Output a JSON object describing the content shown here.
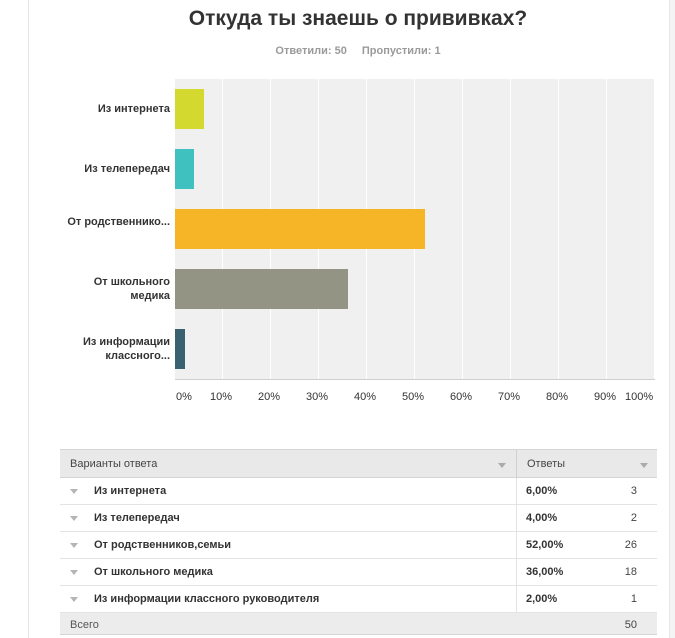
{
  "title": "Откуда ты знаешь о прививках?",
  "stats": {
    "answered": "Ответили: 50",
    "skipped": "Пропустили: 1"
  },
  "chart_data": {
    "type": "bar",
    "orientation": "horizontal",
    "title": "Откуда ты знаешь о прививках?",
    "categories": [
      "Из интернета",
      "Из телепередач",
      "От родственнико...",
      "От школьного медика",
      "Из информации классного..."
    ],
    "values": [
      6,
      4,
      52,
      36,
      2
    ],
    "colors": [
      "#d4d930",
      "#3fc1c0",
      "#f6b526",
      "#939483",
      "#39616f"
    ],
    "xlim": [
      0,
      100
    ],
    "xticks": [
      "0%",
      "10%",
      "20%",
      "30%",
      "40%",
      "50%",
      "60%",
      "70%",
      "80%",
      "90%",
      "100%"
    ],
    "grid": true
  },
  "table": {
    "header_option": "Варианты ответа",
    "header_responses": "Ответы",
    "rows": [
      {
        "label": "Из интернета",
        "percent": "6,00%",
        "count": "3"
      },
      {
        "label": "Из телепередач",
        "percent": "4,00%",
        "count": "2"
      },
      {
        "label": "От родственников,семьи",
        "percent": "52,00%",
        "count": "26"
      },
      {
        "label": "От школьного медика",
        "percent": "36,00%",
        "count": "18"
      },
      {
        "label": "Из информации классного руководителя",
        "percent": "2,00%",
        "count": "1"
      }
    ],
    "total_label": "Всего",
    "total_count": "50"
  }
}
